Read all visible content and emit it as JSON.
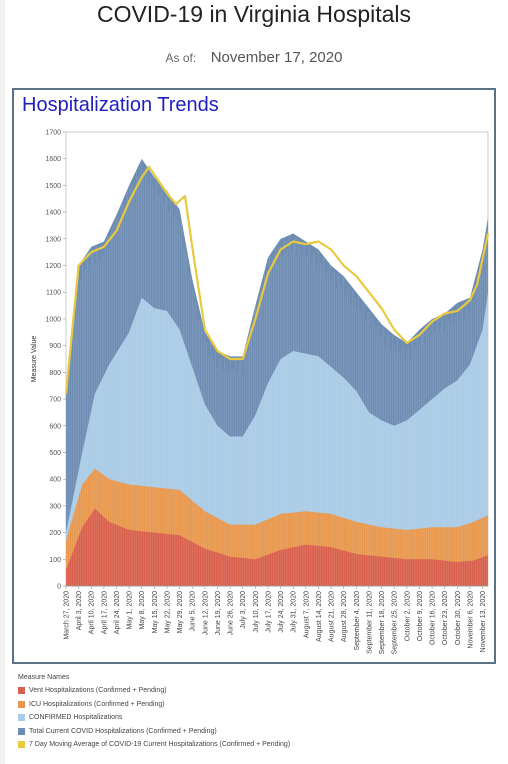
{
  "page": {
    "title": "COVID-19 in Virginia Hospitals",
    "as_of_label": "As of:",
    "as_of_date": "November 17, 2020"
  },
  "panel": {
    "title": "Hospitalization Trends"
  },
  "legend": {
    "title": "Measure Names",
    "items": [
      {
        "label": "Vent Hospitalizations (Confirmed + Pending)",
        "color": "#d9604d"
      },
      {
        "label": "ICU Hospitalizations (Confirmed + Pending)",
        "color": "#e8984e"
      },
      {
        "label": "CONFIRMED Hospitalizations",
        "color": "#a9cbe6"
      },
      {
        "label": "Total Current COVID Hospitalizations (Confirmed + Pending)",
        "color": "#6e8db3"
      },
      {
        "label": "7 Day Moving Average of COVID-19 Current Hospitalizations (Confirmed + Pending)",
        "color": "#e8c93f"
      }
    ]
  },
  "chart_data": {
    "type": "area",
    "ylabel": "Measure Value",
    "xlabel": "",
    "ylim": [
      0,
      1700
    ],
    "yticks": [
      0,
      100,
      200,
      300,
      400,
      500,
      600,
      700,
      800,
      900,
      1000,
      1100,
      1200,
      1300,
      1400,
      1500,
      1600,
      1700
    ],
    "x_start": "March 27, 2020",
    "x_end": "November 16, 2020",
    "xtick_labels": [
      "March 27, 2020",
      "April 3, 2020",
      "April 10, 2020",
      "April 17, 2020",
      "April 24, 2020",
      "May 1, 2020",
      "May 8, 2020",
      "May 15, 2020",
      "May 22, 2020",
      "May 29, 2020",
      "June 5, 2020",
      "June 12, 2020",
      "June 19, 2020",
      "June 26, 2020",
      "July 3, 2020",
      "July 10, 2020",
      "July 17, 2020",
      "July 24, 2020",
      "July 31, 2020",
      "August 7, 2020",
      "August 14, 2020",
      "August 21, 2020",
      "August 28, 2020",
      "September 4, 2020",
      "September 11, 2020",
      "September 18, 2020",
      "September 25, 2020",
      "October 2, 2020",
      "October 9, 2020",
      "October 16, 2020",
      "October 23, 2020",
      "October 30, 2020",
      "November 6, 2020",
      "November 13, 2020"
    ],
    "grid": false,
    "legend_position": "bottom-left",
    "series": [
      {
        "name": "Vent Hospitalizations (Confirmed + Pending)",
        "color": "#d9604d",
        "x": [
          "2020-03-27",
          "2020-04-05",
          "2020-04-12",
          "2020-04-20",
          "2020-05-01",
          "2020-05-15",
          "2020-05-29",
          "2020-06-12",
          "2020-06-26",
          "2020-07-10",
          "2020-07-24",
          "2020-08-07",
          "2020-08-21",
          "2020-09-04",
          "2020-09-18",
          "2020-10-02",
          "2020-10-16",
          "2020-10-30",
          "2020-11-08",
          "2020-11-16"
        ],
        "values": [
          60,
          220,
          290,
          240,
          210,
          200,
          190,
          140,
          110,
          100,
          135,
          155,
          145,
          120,
          110,
          100,
          100,
          90,
          95,
          115
        ]
      },
      {
        "name": "ICU Hospitalizations (Confirmed + Pending)",
        "color": "#e8984e",
        "x": [
          "2020-03-27",
          "2020-04-05",
          "2020-04-12",
          "2020-04-20",
          "2020-05-01",
          "2020-05-15",
          "2020-05-29",
          "2020-06-12",
          "2020-06-26",
          "2020-07-10",
          "2020-07-24",
          "2020-08-07",
          "2020-08-21",
          "2020-09-04",
          "2020-09-18",
          "2020-10-02",
          "2020-10-16",
          "2020-10-30",
          "2020-11-08",
          "2020-11-16"
        ],
        "values": [
          170,
          380,
          440,
          400,
          380,
          370,
          360,
          280,
          230,
          230,
          270,
          280,
          270,
          240,
          220,
          210,
          220,
          220,
          240,
          265
        ]
      },
      {
        "name": "CONFIRMED Hospitalizations",
        "color": "#a9cbe6",
        "x": [
          "2020-03-27",
          "2020-04-05",
          "2020-04-12",
          "2020-04-20",
          "2020-05-01",
          "2020-05-08",
          "2020-05-15",
          "2020-05-22",
          "2020-05-29",
          "2020-06-05",
          "2020-06-12",
          "2020-06-19",
          "2020-06-26",
          "2020-07-03",
          "2020-07-10",
          "2020-07-17",
          "2020-07-24",
          "2020-07-31",
          "2020-08-07",
          "2020-08-14",
          "2020-08-21",
          "2020-08-28",
          "2020-09-04",
          "2020-09-11",
          "2020-09-18",
          "2020-09-25",
          "2020-10-02",
          "2020-10-09",
          "2020-10-16",
          "2020-10-23",
          "2020-10-30",
          "2020-11-06",
          "2020-11-13",
          "2020-11-16"
        ],
        "values": [
          200,
          500,
          720,
          830,
          950,
          1080,
          1040,
          1030,
          960,
          820,
          680,
          600,
          560,
          560,
          640,
          760,
          850,
          880,
          870,
          860,
          820,
          780,
          730,
          650,
          620,
          600,
          620,
          660,
          700,
          740,
          770,
          830,
          960,
          1100
        ]
      },
      {
        "name": "Total Current COVID Hospitalizations (Confirmed + Pending)",
        "color": "#6e8db3",
        "x": [
          "2020-03-27",
          "2020-04-03",
          "2020-04-10",
          "2020-04-17",
          "2020-04-24",
          "2020-05-01",
          "2020-05-08",
          "2020-05-15",
          "2020-05-22",
          "2020-05-29",
          "2020-06-05",
          "2020-06-12",
          "2020-06-19",
          "2020-06-26",
          "2020-07-03",
          "2020-07-10",
          "2020-07-17",
          "2020-07-24",
          "2020-07-31",
          "2020-08-07",
          "2020-08-14",
          "2020-08-21",
          "2020-08-28",
          "2020-09-04",
          "2020-09-11",
          "2020-09-18",
          "2020-09-25",
          "2020-10-02",
          "2020-10-09",
          "2020-10-16",
          "2020-10-23",
          "2020-10-30",
          "2020-11-06",
          "2020-11-13",
          "2020-11-16"
        ],
        "values": [
          750,
          1200,
          1270,
          1290,
          1390,
          1500,
          1600,
          1530,
          1480,
          1410,
          1150,
          950,
          880,
          860,
          860,
          1050,
          1230,
          1300,
          1320,
          1290,
          1260,
          1200,
          1160,
          1100,
          1040,
          980,
          940,
          910,
          960,
          1000,
          1020,
          1060,
          1080,
          1260,
          1380
        ]
      },
      {
        "name": "7 Day Moving Average of COVID-19 Current Hospitalizations (Confirmed + Pending)",
        "color": "#e8c93f",
        "x": [
          "2020-03-27",
          "2020-04-03",
          "2020-04-10",
          "2020-04-17",
          "2020-04-24",
          "2020-05-01",
          "2020-05-08",
          "2020-05-12",
          "2020-05-15",
          "2020-05-22",
          "2020-05-27",
          "2020-06-01",
          "2020-06-05",
          "2020-06-12",
          "2020-06-19",
          "2020-06-26",
          "2020-07-03",
          "2020-07-10",
          "2020-07-17",
          "2020-07-24",
          "2020-07-31",
          "2020-08-07",
          "2020-08-14",
          "2020-08-21",
          "2020-08-28",
          "2020-09-04",
          "2020-09-11",
          "2020-09-18",
          "2020-09-25",
          "2020-10-02",
          "2020-10-09",
          "2020-10-16",
          "2020-10-23",
          "2020-10-30",
          "2020-11-06",
          "2020-11-10",
          "2020-11-16"
        ],
        "values": [
          720,
          1200,
          1250,
          1270,
          1330,
          1440,
          1530,
          1570,
          1540,
          1470,
          1430,
          1460,
          1270,
          960,
          880,
          850,
          850,
          1000,
          1170,
          1260,
          1290,
          1280,
          1290,
          1260,
          1200,
          1160,
          1100,
          1040,
          960,
          910,
          940,
          990,
          1020,
          1030,
          1070,
          1130,
          1320
        ]
      }
    ]
  }
}
